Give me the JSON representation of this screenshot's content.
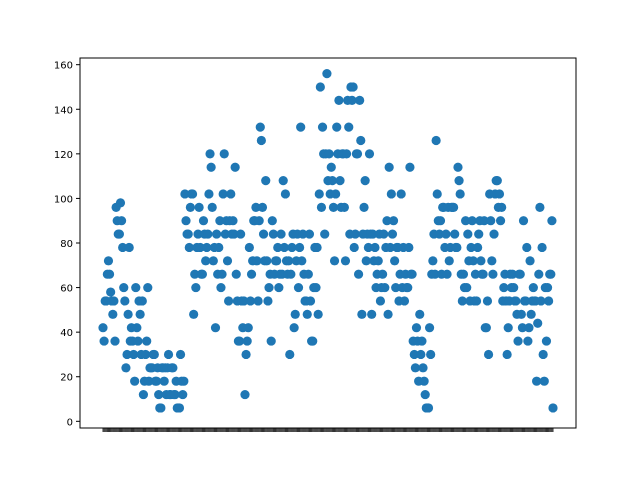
{
  "chart_data": {
    "type": "scatter",
    "title": "",
    "xlabel": "",
    "ylabel": "",
    "marker_color": "#1f77b4",
    "grid": false,
    "legend": "none",
    "ylim": [
      -3,
      163
    ],
    "yticks": [
      0,
      20,
      40,
      60,
      80,
      100,
      120,
      140,
      160
    ],
    "x_axis_note": "categorical x ticks overlap into an unreadable dense band",
    "series": [
      {
        "values": [
          42,
          36,
          54,
          54,
          66,
          72,
          66,
          58,
          54,
          48,
          54,
          36,
          96,
          90,
          84,
          84,
          98,
          90,
          78,
          60,
          54,
          24,
          30,
          48,
          78,
          36,
          42,
          36,
          30,
          18,
          60,
          42,
          36,
          54,
          48,
          30,
          54,
          12,
          18,
          30,
          36,
          60,
          18,
          24,
          24,
          24,
          30,
          30,
          18,
          18,
          24,
          12,
          6,
          6,
          24,
          24,
          18,
          24,
          12,
          24,
          30,
          12,
          12,
          24,
          24,
          12,
          12,
          18,
          6,
          6,
          6,
          30,
          18,
          12,
          18,
          102,
          90,
          84,
          84,
          78,
          96,
          102,
          102,
          48,
          66,
          60,
          78,
          84,
          96,
          78,
          66,
          66,
          90,
          84,
          72,
          78,
          84,
          102,
          120,
          114,
          96,
          72,
          78,
          42,
          84,
          66,
          78,
          90,
          60,
          66,
          102,
          120,
          84,
          90,
          72,
          54,
          90,
          102,
          84,
          90,
          84,
          114,
          66,
          54,
          36,
          36,
          84,
          54,
          42,
          54,
          12,
          30,
          36,
          42,
          78,
          54,
          66,
          72,
          90,
          90,
          96,
          72,
          54,
          90,
          132,
          126,
          96,
          84,
          72,
          108,
          72,
          54,
          60,
          66,
          36,
          90,
          84,
          66,
          72,
          72,
          78,
          60,
          66,
          84,
          66,
          108,
          78,
          102,
          72,
          66,
          72,
          30,
          66,
          78,
          84,
          42,
          48,
          72,
          84,
          60,
          78,
          132,
          72,
          84,
          66,
          54,
          54,
          48,
          66,
          84,
          54,
          36,
          36,
          60,
          78,
          60,
          78,
          48,
          102,
          150,
          96,
          132,
          120,
          84,
          120,
          156,
          108,
          120,
          102,
          114,
          108,
          96,
          72,
          102,
          132,
          120,
          144,
          108,
          96,
          120,
          120,
          96,
          72,
          120,
          144,
          132,
          84,
          150,
          144,
          150,
          78,
          84,
          120,
          120,
          66,
          144,
          126,
          48,
          84,
          96,
          108,
          72,
          84,
          78,
          120,
          84,
          48,
          84,
          72,
          78,
          60,
          66,
          72,
          84,
          54,
          60,
          66,
          84,
          60,
          78,
          90,
          48,
          114,
          78,
          102,
          84,
          90,
          72,
          60,
          78,
          78,
          54,
          66,
          102,
          60,
          78,
          54,
          66,
          60,
          60,
          78,
          114,
          66,
          66,
          36,
          30,
          24,
          42,
          36,
          18,
          48,
          30,
          36,
          24,
          18,
          12,
          6,
          6,
          6,
          42,
          30,
          66,
          72,
          84,
          66,
          126,
          102,
          90,
          84,
          90,
          66,
          96,
          96,
          78,
          84,
          66,
          96,
          72,
          78,
          96,
          96,
          96,
          84,
          78,
          78,
          114,
          108,
          102,
          66,
          54,
          66,
          60,
          90,
          60,
          84,
          72,
          54,
          78,
          90,
          72,
          54,
          66,
          54,
          78,
          84,
          90,
          72,
          66,
          66,
          90,
          42,
          42,
          54,
          30,
          102,
          90,
          72,
          66,
          84,
          102,
          108,
          108,
          96,
          102,
          90,
          96,
          54,
          60,
          66,
          54,
          30,
          42,
          54,
          66,
          60,
          66,
          60,
          54,
          54,
          48,
          36,
          66,
          66,
          48,
          42,
          90,
          54,
          54,
          78,
          36,
          42,
          72,
          48,
          54,
          60,
          54,
          54,
          18,
          44,
          66,
          96,
          54,
          78,
          30,
          18,
          60,
          36,
          60,
          54,
          66,
          66,
          90,
          6
        ]
      }
    ]
  }
}
